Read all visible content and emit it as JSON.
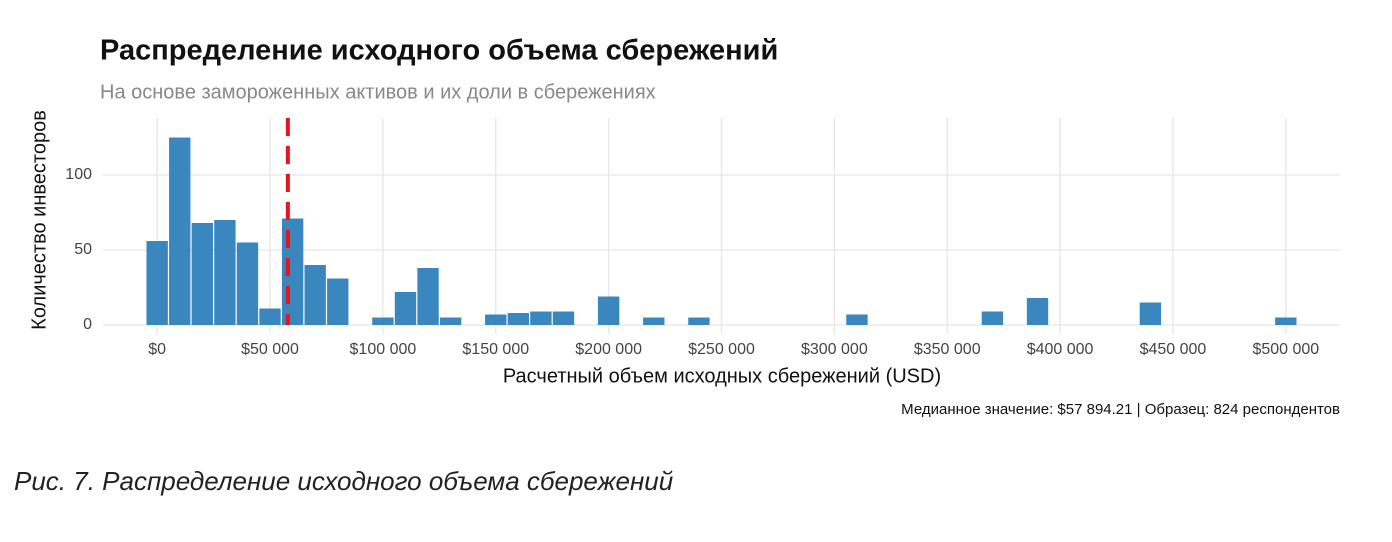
{
  "chart_data": {
    "type": "histogram",
    "title": "Распределение исходного объема сбережений",
    "subtitle": "На основе замороженных активов и их доли в сбережениях",
    "x_label": "Расчетный объем исходных сбережений (USD)",
    "y_label": "Количество инвесторов",
    "annotation": "Медианное значение: $57 894.21 | Образец: 824 респондентов",
    "bins": [
      -5000,
      5000,
      15000,
      25000,
      35000,
      45000,
      55000,
      65000,
      75000,
      85000,
      95000,
      105000,
      115000,
      125000,
      135000,
      145000,
      155000,
      165000,
      175000,
      185000,
      195000,
      205000,
      215000,
      225000,
      235000,
      245000,
      255000,
      265000,
      275000,
      285000,
      295000,
      305000,
      315000,
      325000,
      335000,
      345000,
      355000,
      365000,
      375000,
      385000,
      395000,
      405000,
      415000,
      425000,
      435000,
      445000,
      455000,
      465000,
      475000,
      485000,
      495000,
      505000
    ],
    "values": [
      56,
      125,
      68,
      70,
      55,
      11,
      71,
      40,
      31,
      0,
      5,
      22,
      38,
      5,
      0,
      7,
      8,
      9,
      9,
      0,
      19,
      0,
      5,
      0,
      5,
      0,
      0,
      0,
      0,
      0,
      0,
      7,
      0,
      0,
      0,
      0,
      0,
      9,
      0,
      18,
      0,
      0,
      0,
      0,
      15,
      0,
      0,
      0,
      0,
      0,
      5
    ],
    "color": "#3a87c0",
    "median": 57894.21,
    "median_color": "#e8141c",
    "xlim": [
      -24000,
      524000
    ],
    "ylim": [
      -6,
      138
    ],
    "xticks": [
      {
        "value": 0,
        "label": "$0"
      },
      {
        "value": 50000,
        "label": "$50 000"
      },
      {
        "value": 100000,
        "label": "$100 000"
      },
      {
        "value": 150000,
        "label": "$150 000"
      },
      {
        "value": 200000,
        "label": "$200 000"
      },
      {
        "value": 250000,
        "label": "$250 000"
      },
      {
        "value": 300000,
        "label": "$300 000"
      },
      {
        "value": 350000,
        "label": "$350 000"
      },
      {
        "value": 400000,
        "label": "$400 000"
      },
      {
        "value": 450000,
        "label": "$450 000"
      },
      {
        "value": 500000,
        "label": "$500 000"
      }
    ],
    "yticks": [
      0,
      50,
      100
    ],
    "grid": true
  },
  "caption": "Рис. 7. Распределение исходного объема сбережений"
}
